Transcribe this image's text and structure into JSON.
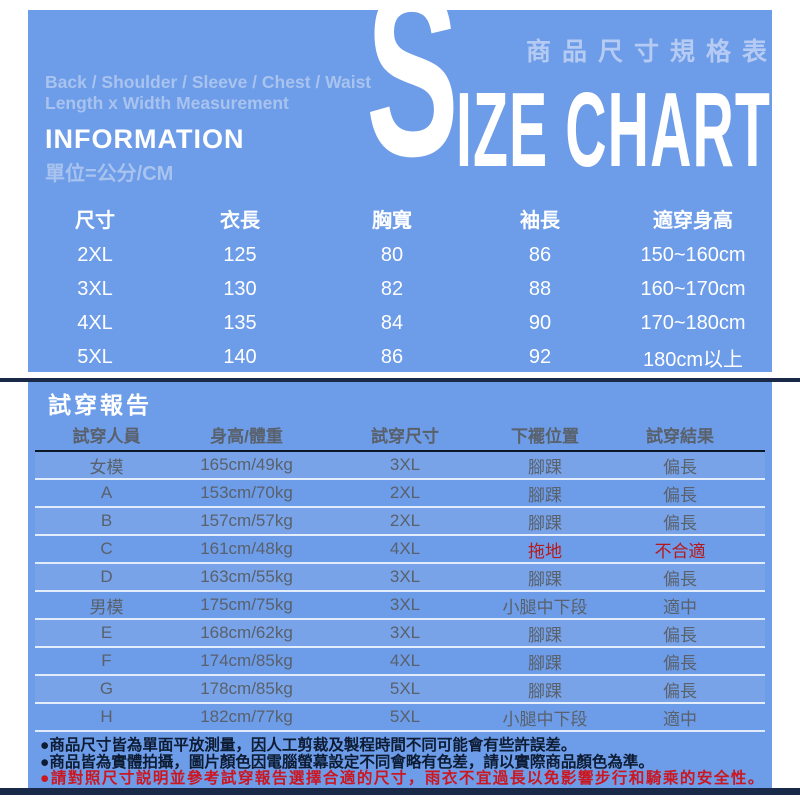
{
  "header": {
    "badge": "商品尺寸規格表",
    "big_letter": "S",
    "title_rest": "IZE CHART",
    "measure_line1": "Back / Shoulder / Sleeve / Chest / Waist",
    "measure_line2": "Length x Width Measurement",
    "info_title": "INFORMATION",
    "unit_note": "單位=公分/CM"
  },
  "size_table": {
    "headers": [
      "尺寸",
      "衣長",
      "胸寬",
      "袖長",
      "適穿身高"
    ],
    "rows": [
      [
        "2XL",
        "125",
        "80",
        "86",
        "150~160cm"
      ],
      [
        "3XL",
        "130",
        "82",
        "88",
        "160~170cm"
      ],
      [
        "4XL",
        "135",
        "84",
        "90",
        "170~180cm"
      ],
      [
        "5XL",
        "140",
        "86",
        "92",
        "180cm以上"
      ]
    ]
  },
  "fit_report": {
    "title": "試穿報告",
    "headers": [
      "試穿人員",
      "身高/體重",
      "試穿尺寸",
      "下襬位置",
      "試穿結果"
    ],
    "rows": [
      [
        "女模",
        "165cm/49kg",
        "3XL",
        "腳踝",
        "偏長"
      ],
      [
        "A",
        "153cm/70kg",
        "2XL",
        "腳踝",
        "偏長"
      ],
      [
        "B",
        "157cm/57kg",
        "2XL",
        "腳踝",
        "偏長"
      ],
      [
        "C",
        "161cm/48kg",
        "4XL",
        "拖地",
        "不合適"
      ],
      [
        "D",
        "163cm/55kg",
        "3XL",
        "腳踝",
        "偏長"
      ],
      [
        "男模",
        "175cm/75kg",
        "3XL",
        "小腿中下段",
        "適中"
      ],
      [
        "E",
        "168cm/62kg",
        "3XL",
        "腳踝",
        "偏長"
      ],
      [
        "F",
        "174cm/85kg",
        "4XL",
        "腳踝",
        "偏長"
      ],
      [
        "G",
        "178cm/85kg",
        "5XL",
        "腳踝",
        "偏長"
      ],
      [
        "H",
        "182cm/77kg",
        "5XL",
        "小腿中下段",
        "適中"
      ]
    ]
  },
  "notes": [
    "●商品尺寸皆為單面平放測量，因人工剪裁及製程時間不同可能會有些許誤差。",
    "●商品皆為實體拍攝，圖片顏色因電腦螢幕設定不同會略有色差，請以實際商品顏色為準。",
    "●請對照尺寸説明並參考試穿報告選擇合適的尺寸，雨衣不宜過長以免影響步行和騎乘的安全性。"
  ],
  "colors": {
    "canvas_blue": "#6d9ce8",
    "light_blue_text": "#a9c3ef",
    "badge_text": "#b5cbf3",
    "white_text": "#ffffff",
    "fit_header_dark": "#0c1828",
    "row_text_gray": "#59616c",
    "alert_red": "#b6191b",
    "note_red": "#cc1620",
    "divider_navy": "#1a2947"
  }
}
